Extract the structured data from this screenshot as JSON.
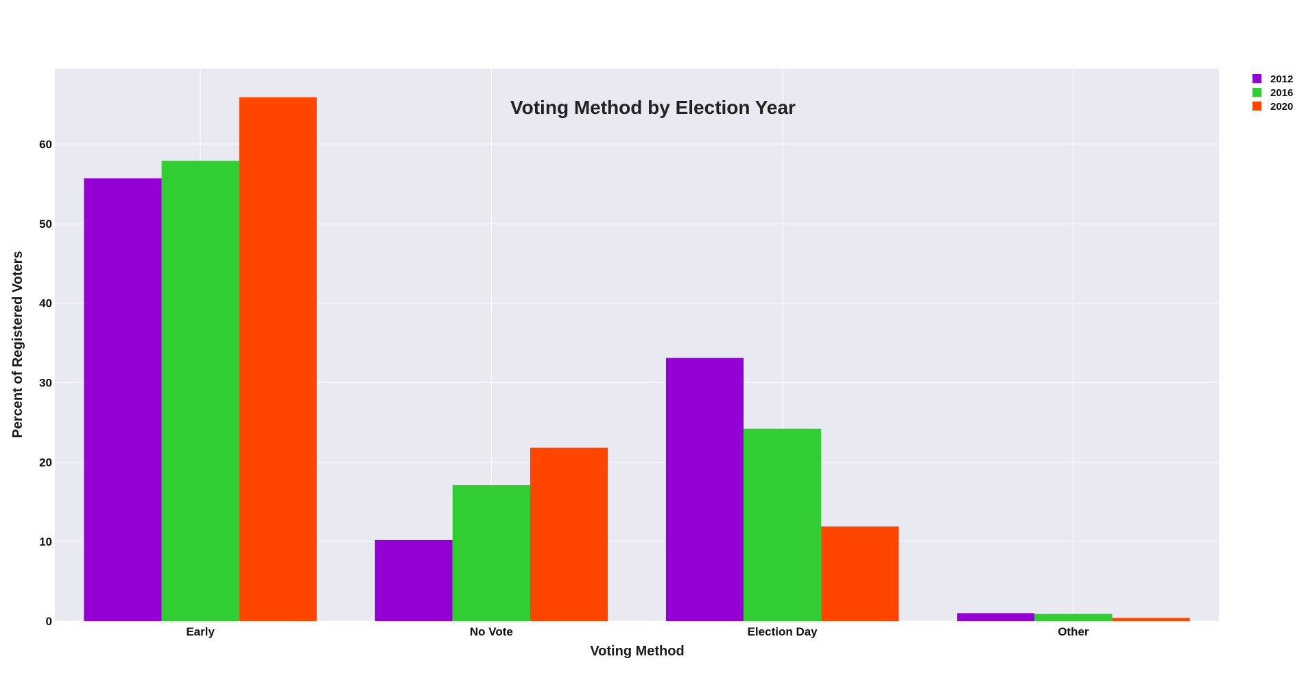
{
  "chart_data": {
    "type": "bar",
    "title": "Voting Method by Election Year",
    "xlabel": "Voting Method",
    "ylabel": "Percent of Registered Voters",
    "categories": [
      "Early",
      "No Vote",
      "Election Day",
      "Other"
    ],
    "series": [
      {
        "name": "2012",
        "color": "#9400D3",
        "values": [
          55.7,
          10.2,
          33.1,
          1.0
        ]
      },
      {
        "name": "2016",
        "color": "#32CD32",
        "values": [
          57.9,
          17.1,
          24.2,
          0.9
        ]
      },
      {
        "name": "2020",
        "color": "#FF4500",
        "values": [
          65.9,
          21.8,
          11.9,
          0.4
        ]
      }
    ],
    "ylim": [
      0,
      69.5
    ],
    "yticks": [
      0,
      10,
      20,
      30,
      40,
      50,
      60
    ],
    "grid": true,
    "legend_position": "top-right",
    "plot_background": "#E9E9F2",
    "grid_color": "#FFFFFF"
  }
}
